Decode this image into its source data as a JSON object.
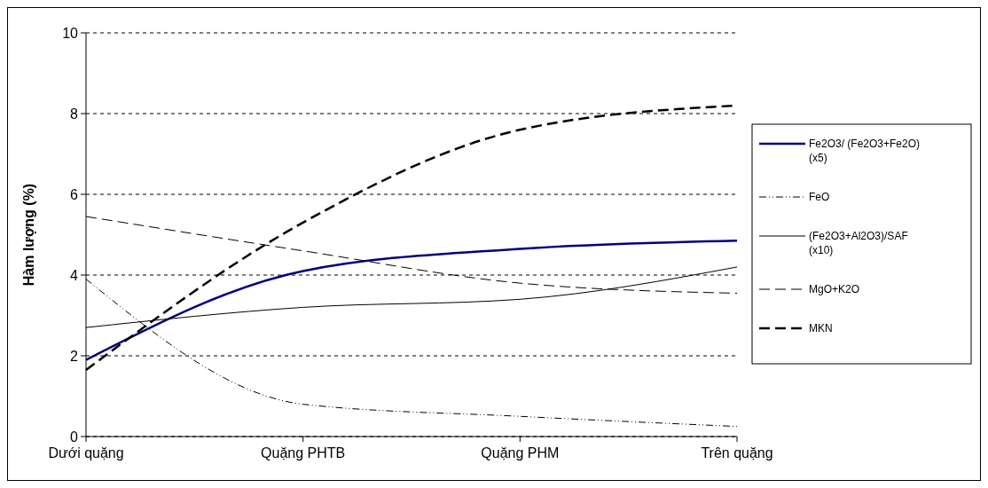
{
  "chart_data": {
    "type": "line",
    "ylabel": "Hàm lượng (%)",
    "categories": [
      "Dưới quặng",
      "Quặng PHTB",
      "Quặng PHM",
      "Trên quặng"
    ],
    "series": [
      {
        "name": "Fe2O3/ (Fe2O3+Fe2O) (x5)",
        "color": "#000080",
        "line_style": "solid",
        "values": [
          1.9,
          4.1,
          4.65,
          4.85
        ]
      },
      {
        "name": "FeO",
        "color": "#000000",
        "line_style": "dotted",
        "values": [
          3.9,
          0.8,
          0.5,
          0.25
        ]
      },
      {
        "name": "(Fe2O3+Al2O3)/SAF (x10)",
        "color": "#000000",
        "line_style": "solid",
        "values": [
          2.7,
          3.2,
          3.4,
          4.2
        ]
      },
      {
        "name": "MgO+K2O",
        "color": "#000000",
        "line_style": "dashed",
        "values": [
          5.45,
          4.6,
          3.8,
          3.55
        ]
      },
      {
        "name": "MKN",
        "color": "#000000",
        "line_style": "dashed",
        "values": [
          1.65,
          5.3,
          7.6,
          8.2
        ]
      }
    ],
    "ylim": [
      0,
      10
    ],
    "yticks": [
      0,
      2,
      4,
      6,
      8,
      10
    ],
    "grid": "y",
    "legend": "right",
    "marker": "none"
  }
}
